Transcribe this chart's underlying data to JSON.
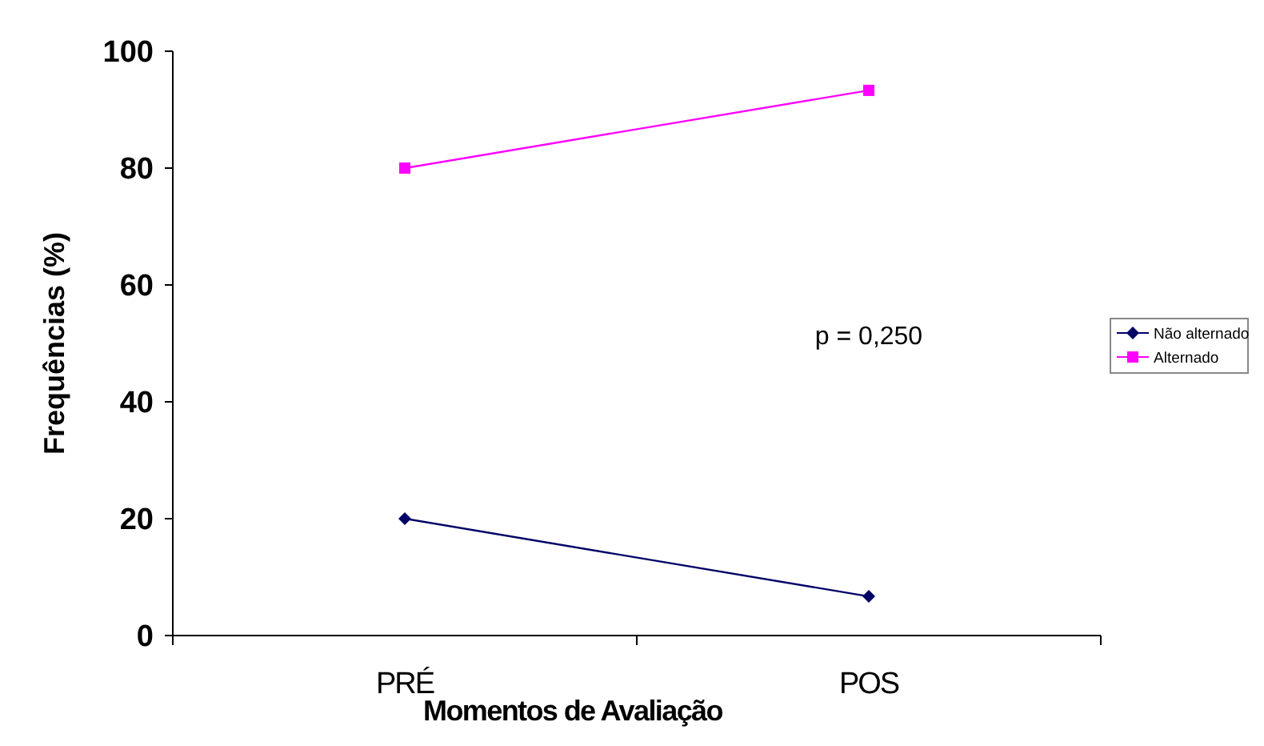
{
  "chart_data": {
    "type": "line",
    "ylabel": "Frequências (%)",
    "xlabel": "Momentos de Avaliação",
    "categories": [
      "PRÉ",
      "POS"
    ],
    "series": [
      {
        "name": "Não alternado",
        "color": "#000066",
        "values": [
          20,
          6.7
        ],
        "marker": "diamond"
      },
      {
        "name": "Alternado",
        "color": "#ff00ff",
        "values": [
          80,
          93.3
        ],
        "marker": "square"
      }
    ],
    "ylim": [
      0,
      100
    ],
    "yticks": [
      0,
      20,
      40,
      60,
      80,
      100
    ],
    "grid": false,
    "legend": "right",
    "annotations": [
      "p = 0,250"
    ]
  }
}
